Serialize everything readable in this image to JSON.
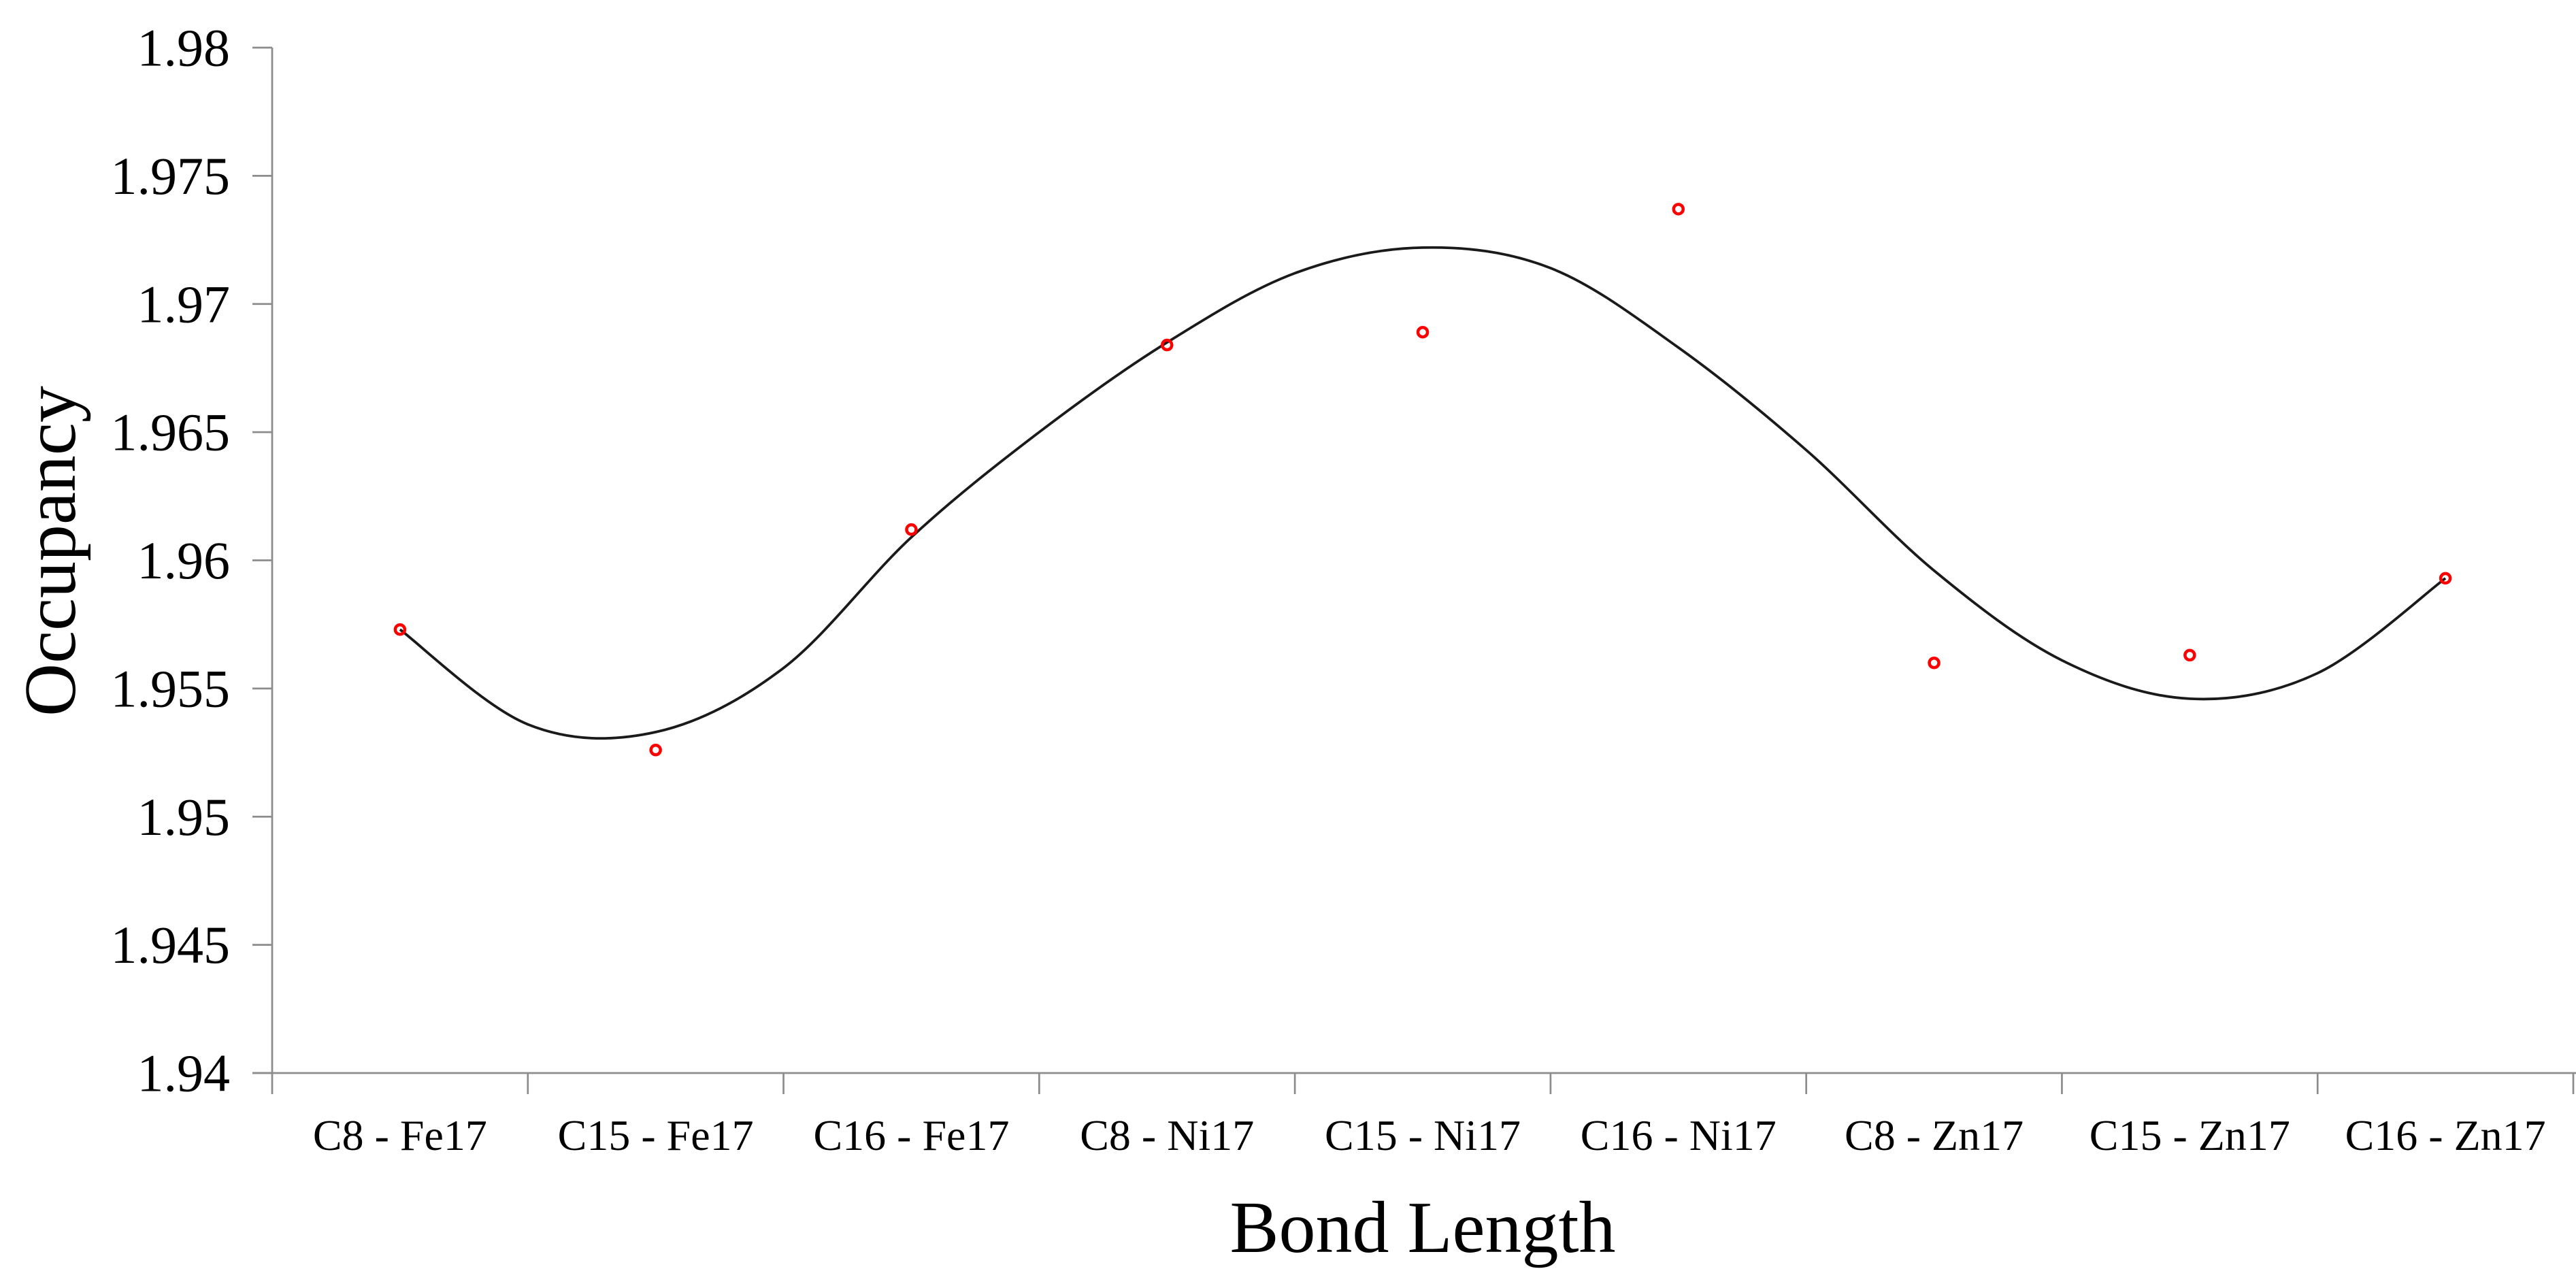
{
  "chart_data": {
    "type": "scatter",
    "title": "",
    "xlabel": "Bond Length",
    "ylabel": "Occupancy",
    "categories": [
      "C8 - Fe17",
      "C15 - Fe17",
      "C16 - Fe17",
      "C8 - Ni17",
      "C15 - Ni17",
      "C16 - Ni17",
      "C8 - Zn17",
      "C15 - Zn17",
      "C16 - Zn17"
    ],
    "series": [
      {
        "name": "Occupancy",
        "marker": "open-circle",
        "color": "#FF0000",
        "values": [
          1.9573,
          1.9526,
          1.9612,
          1.9684,
          1.9689,
          1.9737,
          1.956,
          1.9563,
          1.9593
        ]
      }
    ],
    "trendline": {
      "style": "smooth-fit-curve",
      "color": "#1A1A1A",
      "points": [
        {
          "x": 0.0,
          "y": 1.9573
        },
        {
          "x": 0.5,
          "y": 1.9536
        },
        {
          "x": 1.0,
          "y": 1.9533
        },
        {
          "x": 1.5,
          "y": 1.9558
        },
        {
          "x": 2.0,
          "y": 1.9609
        },
        {
          "x": 2.5,
          "y": 1.965
        },
        {
          "x": 3.0,
          "y": 1.9685
        },
        {
          "x": 3.5,
          "y": 1.9712
        },
        {
          "x": 4.0,
          "y": 1.9722
        },
        {
          "x": 4.5,
          "y": 1.9714
        },
        {
          "x": 5.0,
          "y": 1.9683
        },
        {
          "x": 5.5,
          "y": 1.9643
        },
        {
          "x": 6.0,
          "y": 1.9596
        },
        {
          "x": 6.5,
          "y": 1.9561
        },
        {
          "x": 7.0,
          "y": 1.9546
        },
        {
          "x": 7.5,
          "y": 1.9556
        },
        {
          "x": 8.0,
          "y": 1.9593
        }
      ]
    },
    "ylim": [
      1.94,
      1.98
    ],
    "ytick_labels": [
      "1.98",
      "1.975",
      "1.97",
      "1.965",
      "1.96",
      "1.955",
      "1.95",
      "1.945",
      "1.94"
    ],
    "grid": false,
    "legend": false,
    "axis_color": "#8C8C8C",
    "text_color": "#000000",
    "background_color": "#FFFFFF"
  }
}
